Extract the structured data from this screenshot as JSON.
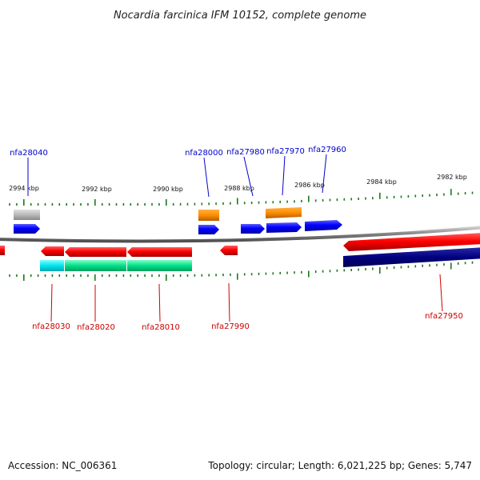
{
  "title": "Nocardia farcinica IFM 10152, complete genome",
  "footer": {
    "accession": "Accession: NC_006361",
    "summary": "Topology: circular; Length: 6,021,225 bp; Genes: 5,747"
  },
  "colors": {
    "forward_label": "#0000cc",
    "reverse_label": "#cc0000",
    "backbone": "#888888",
    "tick": "#1a7a1a",
    "cds": "#ff0000",
    "cds_forward": "#0000ff",
    "gene_dark": "#000080",
    "orange": "#ff8c00",
    "gray": "#b0b0b0",
    "cyan": "#00e5ee",
    "teal": "#00e08a"
  },
  "scale": {
    "unit": "kbp",
    "labels": [
      "2994 kbp",
      "2992 kbp",
      "2990 kbp",
      "2988 kbp",
      "2986 kbp",
      "2984 kbp",
      "2982 kbp"
    ]
  },
  "genes_top": [
    {
      "label": "nfa28040"
    },
    {
      "label": "nfa28000"
    },
    {
      "label": "nfa27980"
    },
    {
      "label": "nfa27970"
    },
    {
      "label": "nfa27960"
    }
  ],
  "genes_bottom": [
    {
      "label": "nfa28030"
    },
    {
      "label": "nfa28020"
    },
    {
      "label": "nfa28010"
    },
    {
      "label": "nfa27990"
    },
    {
      "label": "nfa27950"
    }
  ]
}
